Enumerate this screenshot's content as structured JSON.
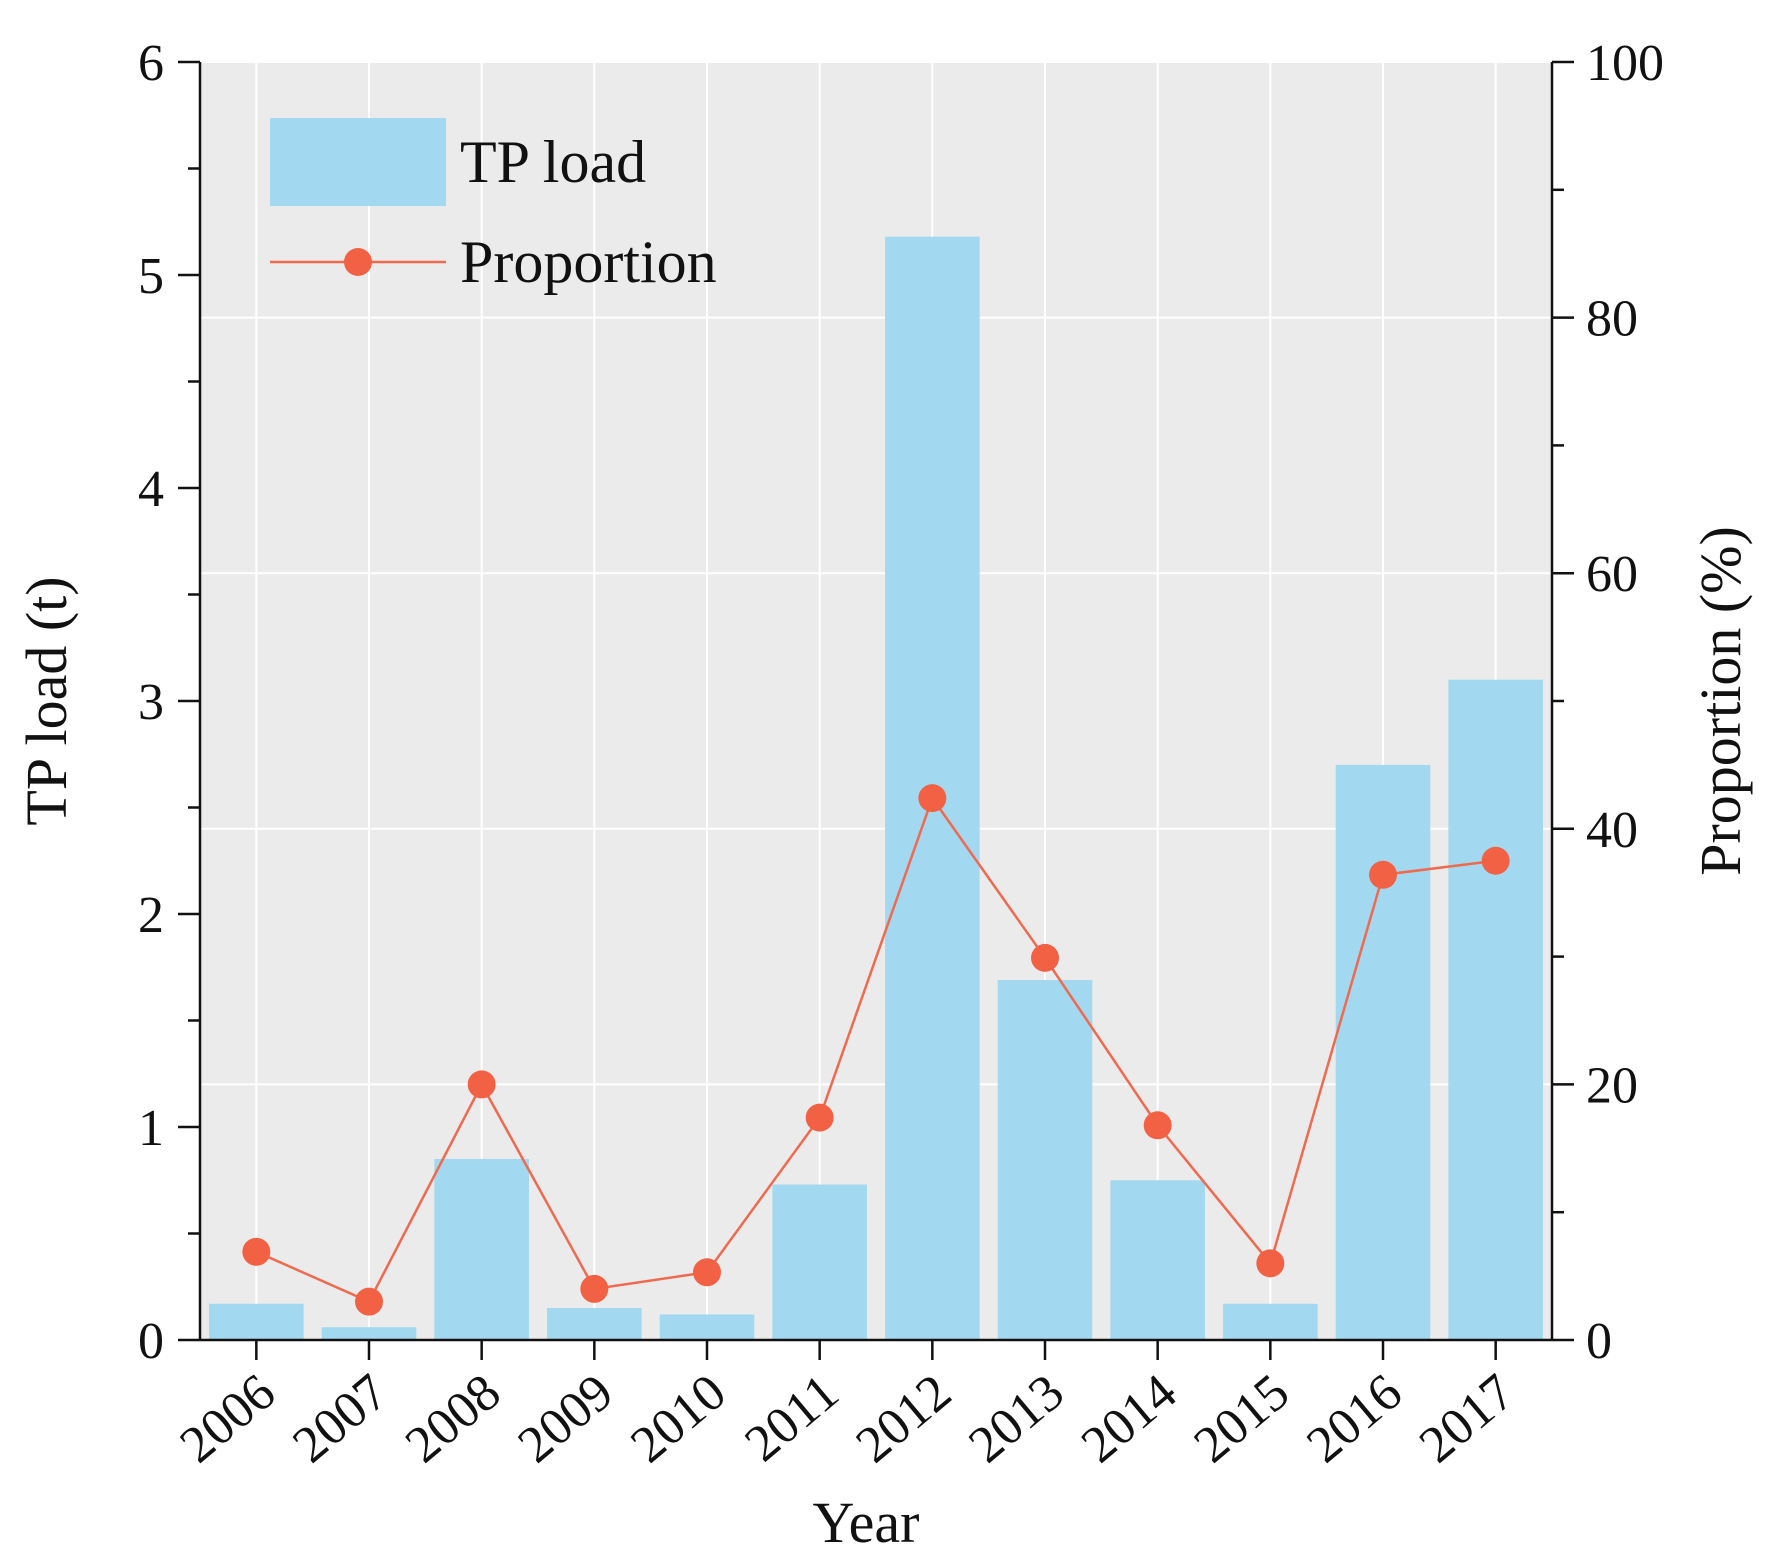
{
  "chart_data": {
    "type": "bar+line",
    "categories": [
      "2006",
      "2007",
      "2008",
      "2009",
      "2010",
      "2011",
      "2012",
      "2013",
      "2014",
      "2015",
      "2016",
      "2017"
    ],
    "series": [
      {
        "name": "TP load",
        "type": "bar",
        "axis": "left",
        "values": [
          0.17,
          0.06,
          0.85,
          0.15,
          0.12,
          0.73,
          5.18,
          1.69,
          0.75,
          0.17,
          2.7,
          3.1
        ]
      },
      {
        "name": "Proportion",
        "type": "line",
        "axis": "right",
        "values": [
          6.9,
          3.0,
          20.0,
          4.0,
          5.3,
          17.4,
          42.4,
          29.9,
          16.8,
          6.0,
          36.4,
          37.5
        ]
      }
    ],
    "xlabel": "Year",
    "ylabel": "TP load (t)",
    "y2label": "Proportion (%)",
    "ylim": [
      0,
      6
    ],
    "y2lim": [
      0,
      100
    ],
    "yticks": [
      "0",
      "1",
      "2",
      "3",
      "4",
      "5",
      "6"
    ],
    "y2ticks": [
      "0",
      "20",
      "40",
      "60",
      "80",
      "100"
    ],
    "grid": true,
    "legend": {
      "position": "top-left",
      "entries": [
        "TP load",
        "Proportion"
      ]
    },
    "colors": {
      "bar": "#a3d9f0",
      "line": "#ef6a4f",
      "marker": "#f26144",
      "background": "#ebebeb",
      "grid": "#ffffff"
    }
  }
}
